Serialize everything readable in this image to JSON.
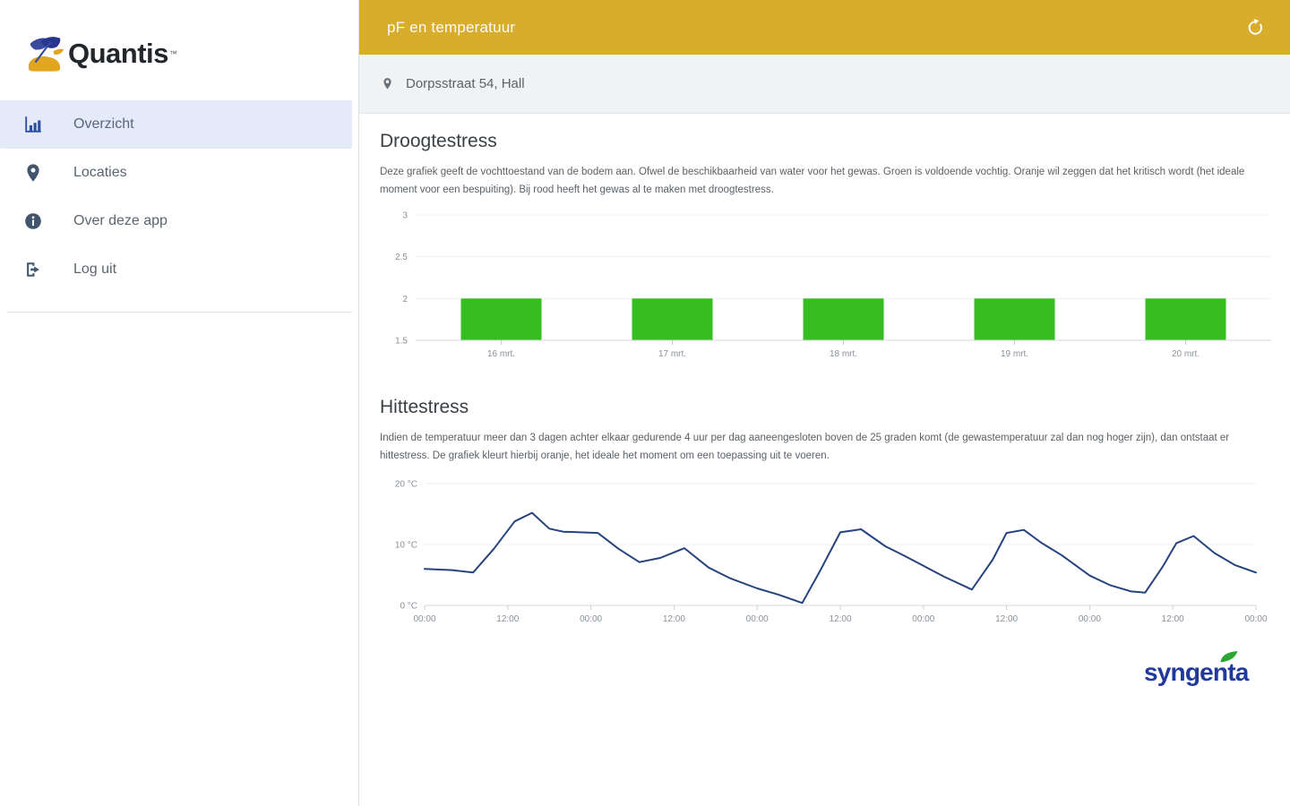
{
  "sidebar": {
    "logo_text": "Quantis",
    "logo_tm": "™",
    "items": [
      {
        "label": "Overzicht",
        "icon": "bar-chart-icon",
        "active": true
      },
      {
        "label": "Locaties",
        "icon": "map-pin-icon",
        "active": false
      },
      {
        "label": "Over deze app",
        "icon": "info-icon",
        "active": false
      },
      {
        "label": "Log uit",
        "icon": "logout-icon",
        "active": false
      }
    ]
  },
  "header": {
    "title": "pF en temperatuur"
  },
  "location_bar": {
    "address": "Dorpsstraat 54, Hall"
  },
  "sections": {
    "droogtestress": {
      "title": "Droogtestress",
      "description": "Deze grafiek geeft de vochttoestand van de bodem aan. Ofwel de beschikbaarheid van water voor het gewas. Groen is voldoende vochtig. Oranje wil zeggen dat het kritisch wordt (het ideale moment voor een bespuiting). Bij rood heeft het gewas al te maken met droogtestress."
    },
    "hittestress": {
      "title": "Hittestress",
      "description": "Indien de temperatuur meer dan 3 dagen achter elkaar gedurende 4 uur per dag aaneengesloten boven de 25 graden komt (de gewastemperatuur zal dan nog hoger zijn), dan ontstaat er hittestress. De grafiek kleurt hierbij oranje, het ideale het moment om een toepassing uit te voeren."
    }
  },
  "footer": {
    "brand": "syngenta"
  },
  "colors": {
    "header_gold": "#d8ad2b",
    "bar_green": "#36bd20",
    "line_blue": "#26437e",
    "active_item_bg": "#e4eaf8",
    "syngenta_blue": "#21399b",
    "leaf_green": "#2ea636"
  },
  "chart_data": [
    {
      "type": "bar",
      "name": "droogtestress",
      "categories": [
        "16 mrt.",
        "17 mrt.",
        "18 mrt.",
        "19 mrt.",
        "20 mrt."
      ],
      "values": [
        2,
        2,
        2,
        2,
        2
      ],
      "baseline": 1.5,
      "ylim": [
        1.5,
        3
      ],
      "y_ticks": [
        3,
        2.5,
        2,
        1.5
      ],
      "bar_color": "#36bd20",
      "grid": true,
      "legend": "none"
    },
    {
      "type": "line",
      "name": "hittestress",
      "x_range_hours": [
        0,
        120
      ],
      "x_ticks": [
        "00:00",
        "12:00",
        "00:00",
        "12:00",
        "00:00",
        "12:00",
        "00:00",
        "12:00",
        "00:00",
        "12:00",
        "00:00"
      ],
      "ylim": [
        0,
        20
      ],
      "y_ticks": [
        {
          "value": 20,
          "label": "20 °C"
        },
        {
          "value": 10,
          "label": "10 °C"
        },
        {
          "value": 0,
          "label": "0 °C"
        }
      ],
      "line_color": "#26437e",
      "grid": true,
      "legend": "none",
      "points": [
        [
          0,
          6.0
        ],
        [
          4,
          5.8
        ],
        [
          7,
          5.4
        ],
        [
          10,
          9.3
        ],
        [
          13,
          13.8
        ],
        [
          15.5,
          15.2
        ],
        [
          18,
          12.6
        ],
        [
          20,
          12.1
        ],
        [
          25,
          11.9
        ],
        [
          28,
          9.3
        ],
        [
          31,
          7.1
        ],
        [
          34,
          7.8
        ],
        [
          37.5,
          9.4
        ],
        [
          41,
          6.2
        ],
        [
          44,
          4.5
        ],
        [
          48,
          2.8
        ],
        [
          51,
          1.8
        ],
        [
          54.5,
          0.4
        ],
        [
          57,
          5.5
        ],
        [
          60,
          12.0
        ],
        [
          63,
          12.5
        ],
        [
          66.5,
          9.7
        ],
        [
          69,
          8.3
        ],
        [
          72,
          6.5
        ],
        [
          75,
          4.7
        ],
        [
          79,
          2.6
        ],
        [
          82,
          7.5
        ],
        [
          84,
          11.9
        ],
        [
          86.5,
          12.4
        ],
        [
          89,
          10.3
        ],
        [
          92,
          8.2
        ],
        [
          96,
          4.9
        ],
        [
          99,
          3.3
        ],
        [
          102,
          2.3
        ],
        [
          104,
          2.1
        ],
        [
          106.5,
          6.3
        ],
        [
          108.5,
          10.2
        ],
        [
          111,
          11.4
        ],
        [
          114,
          8.6
        ],
        [
          117,
          6.6
        ],
        [
          120,
          5.4
        ]
      ]
    }
  ]
}
